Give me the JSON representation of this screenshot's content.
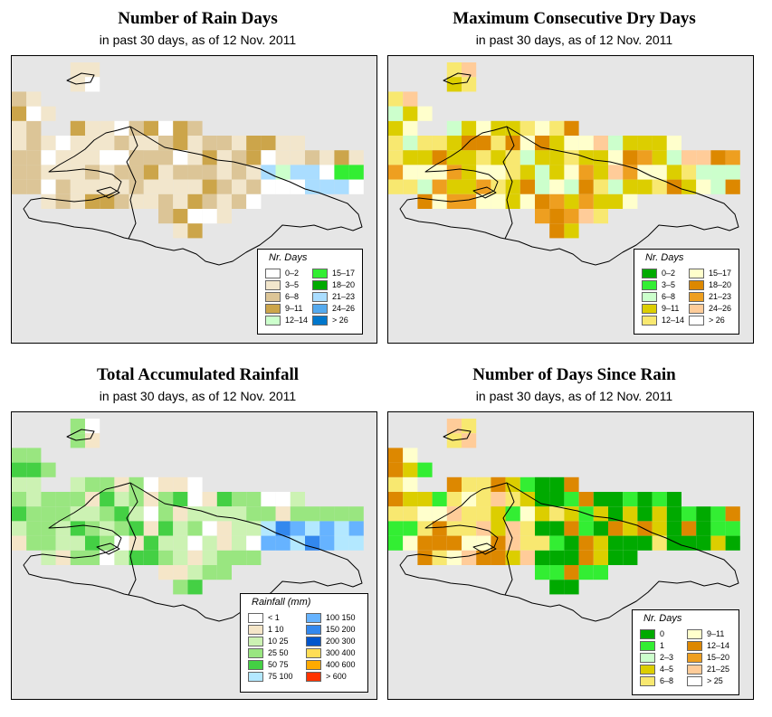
{
  "ocean_color": "#e6e6e6",
  "panels": [
    {
      "id": "rain-days",
      "title": "Number of Rain Days",
      "subtitle": "in past 30 days, as of  12 Nov. 2011",
      "legend": {
        "title": "Nr. Days",
        "col1": [
          {
            "label": "0–2",
            "color": "#ffffff"
          },
          {
            "label": "3–5",
            "color": "#f2e6cc"
          },
          {
            "label": "6–8",
            "color": "#dcc597"
          },
          {
            "label": "9–11",
            "color": "#cca54a"
          },
          {
            "label": "12–14",
            "color": "#ccffcc"
          }
        ],
        "col2": [
          {
            "label": "15–17",
            "color": "#33ee33"
          },
          {
            "label": "18–20",
            "color": "#00aa00"
          },
          {
            "label": "21–23",
            "color": "#aaddff"
          },
          {
            "label": "24–26",
            "color": "#55aaee"
          },
          {
            "label": "> 26",
            "color": "#0077cc"
          }
        ]
      }
    },
    {
      "id": "max-dry",
      "title": "Maximum Consecutive Dry Days",
      "subtitle": "in past 30 days, as of  12 Nov. 2011",
      "legend": {
        "title": "Nr. Days",
        "col1": [
          {
            "label": "0–2",
            "color": "#00aa00"
          },
          {
            "label": "3–5",
            "color": "#33ee33"
          },
          {
            "label": "6–8",
            "color": "#ccffcc"
          },
          {
            "label": "9–11",
            "color": "#dcce00"
          },
          {
            "label": "12–14",
            "color": "#f8e870"
          }
        ],
        "col2": [
          {
            "label": "15–17",
            "color": "#ffffcc"
          },
          {
            "label": "18–20",
            "color": "#dd8800"
          },
          {
            "label": "21–23",
            "color": "#ee9f20"
          },
          {
            "label": "24–26",
            "color": "#ffcc99"
          },
          {
            "label": "> 26",
            "color": "#ffffff"
          }
        ]
      }
    },
    {
      "id": "total-rain",
      "title": "Total Accumulated Rainfall",
      "subtitle": "in past 30 days, as of  12 Nov. 2011",
      "legend": {
        "title": "Rainfall (mm)",
        "col1": [
          {
            "label": "< 1",
            "color": "#ffffff"
          },
          {
            "label": "1    10",
            "color": "#f5e6c8"
          },
          {
            "label": "10    25",
            "color": "#ccf2b3"
          },
          {
            "label": "25    50",
            "color": "#99e680"
          },
          {
            "label": "50    75",
            "color": "#44d044"
          },
          {
            "label": "75   100",
            "color": "#b3e8ff"
          }
        ],
        "col2": [
          {
            "label": "100   150",
            "color": "#66b3ff"
          },
          {
            "label": "150   200",
            "color": "#3388ee"
          },
          {
            "label": "200   300",
            "color": "#0055cc"
          },
          {
            "label": "300   400",
            "color": "#ffdd55"
          },
          {
            "label": "400   600",
            "color": "#ffaa00"
          },
          {
            "label": "> 600",
            "color": "#ff3300"
          }
        ]
      }
    },
    {
      "id": "days-since",
      "title": "Number of Days Since Rain",
      "subtitle": "in past 30 days, as of  12 Nov. 2011",
      "legend": {
        "title": "Nr. Days",
        "col1": [
          {
            "label": "0",
            "color": "#00aa00"
          },
          {
            "label": "1",
            "color": "#33ee33"
          },
          {
            "label": "2–3",
            "color": "#ccffcc"
          },
          {
            "label": "4–5",
            "color": "#dcce00"
          },
          {
            "label": "6–8",
            "color": "#f8e870"
          }
        ],
        "col2": [
          {
            "label": "9–11",
            "color": "#ffffcc"
          },
          {
            "label": "12–14",
            "color": "#dd8800"
          },
          {
            "label": "15–20",
            "color": "#ee9f20"
          },
          {
            "label": "21–25",
            "color": "#ffcc99"
          },
          {
            "label": "> 25",
            "color": "#ffffff"
          }
        ]
      }
    }
  ]
}
